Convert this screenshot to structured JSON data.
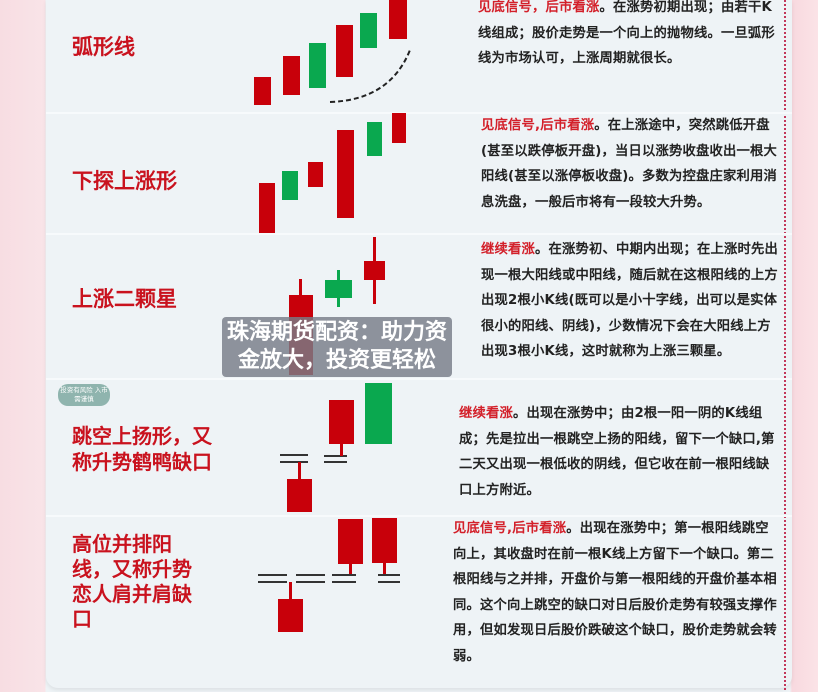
{
  "colors": {
    "title_red": "#c9121e",
    "bull_candle": "#c8000a",
    "bear_candle": "#0aa84f",
    "banner_bg": "#787d87"
  },
  "patterns": [
    {
      "name": "弧形线",
      "signal": "见底信号，后市看涨",
      "text": "。在涨势初期出现；由若干K线组成；股价走势是一个向上的抛物线。一旦弧形线为市场认可，上涨周期就很长。"
    },
    {
      "name": "下探上涨形",
      "signal": "见底信号,后市看涨",
      "text": "。在上涨途中，突然跳低开盘(甚至以跌停板开盘)，当日以涨势收盘收出一根大阳线(甚至以涨停板收盘)。多数为控盘庄家利用消息洗盘，一般后市将有一段较大升势。"
    },
    {
      "name": "上涨二颗星",
      "signal": "继续看涨",
      "text": "。在涨势初、中期内出现；在上涨时先出现一根大阳线或中阳线，随后就在这根阳线的上方出现2根小K线(既可以是小十字线，出可以是实体很小的阳线、阴线)，少数情况下会在大阳线上方出现3根小K线，这时就称为上涨三颗星。"
    },
    {
      "name": "跳空上扬形，又称升势鹤鸭缺口",
      "signal": "继续看涨",
      "text": "。出现在涨势中；由2根一阳一阴的K线组成；先是拉出一根跳空上扬的阳线，留下一个缺口,第二天又出现一根低收的阴线，但它收在前一根阳线缺口上方附近。"
    },
    {
      "name": "高位并排阳线，又称升势恋人肩并肩缺口",
      "signal": "见底信号,后市看涨",
      "text": "。出现在涨势中；第一根阳线跳空向上，其收盘时在前一根K线上方留下一个缺口。第二根阳线与之并排，开盘价与第一根阳线的开盘价基本相同。这个向上跳空的缺口对日后股价走势有较强支撑作用，但如发现日后股价跌破这个缺口，股价走势就会转弱。"
    }
  ],
  "badge": "投资有风险 入市需谨慎",
  "banner": "珠海期货配资：助力资金放大，投资更轻松"
}
